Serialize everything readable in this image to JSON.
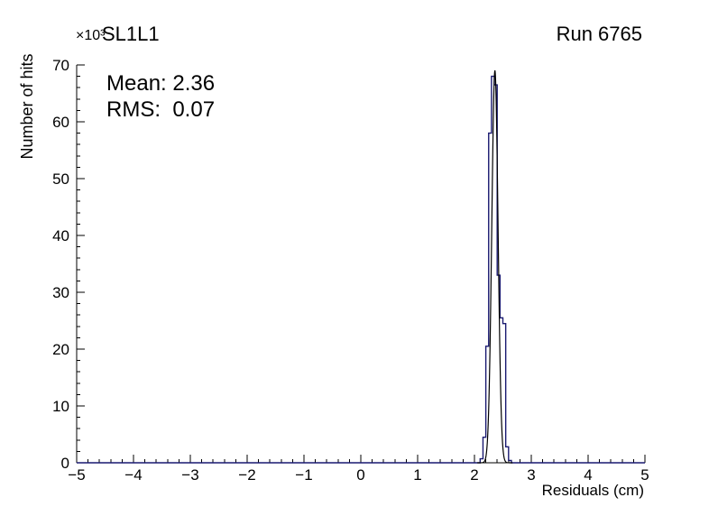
{
  "chart_data": {
    "type": "histogram",
    "title": "SL1L1",
    "top_right_label": "Run 6765",
    "xlabel": "Residuals (cm)",
    "ylabel": "Number of hits",
    "y_multiplier": "×10³",
    "xlim": [
      -5,
      5
    ],
    "ylim": [
      0,
      70000
    ],
    "x_tick_values": [
      -5,
      -4,
      -3,
      -2,
      -1,
      0,
      1,
      2,
      3,
      4,
      5
    ],
    "x_tick_labels": [
      "−5",
      "−4",
      "−3",
      "−2",
      "−1",
      "0",
      "1",
      "2",
      "3",
      "4",
      "5"
    ],
    "x_minor_step": 0.2,
    "y_tick_values": [
      0,
      10000,
      20000,
      30000,
      40000,
      50000,
      60000,
      70000
    ],
    "y_tick_labels": [
      "0",
      "10",
      "20",
      "30",
      "40",
      "50",
      "60",
      "70"
    ],
    "y_minor_step": 2000,
    "grid": false,
    "legend": "none",
    "stats": {
      "mean": 2.36,
      "rms": 0.07,
      "mean_text": "Mean: 2.36",
      "rms_text": "RMS:  0.07"
    },
    "colors": {
      "histogram": "#191970",
      "fit": "#000000",
      "axis": "#000000",
      "text": "#000000",
      "background": "#ffffff"
    },
    "bins": {
      "width": 0.05,
      "entries": [
        {
          "x": 2.1,
          "count": 700
        },
        {
          "x": 2.15,
          "count": 4500
        },
        {
          "x": 2.2,
          "count": 20500
        },
        {
          "x": 2.25,
          "count": 58000
        },
        {
          "x": 2.3,
          "count": 68000
        },
        {
          "x": 2.35,
          "count": 66500
        },
        {
          "x": 2.4,
          "count": 33000
        },
        {
          "x": 2.45,
          "count": 25500
        },
        {
          "x": 2.5,
          "count": 24500
        },
        {
          "x": 2.55,
          "count": 2800
        },
        {
          "x": 2.6,
          "count": 400
        }
      ]
    },
    "fit": {
      "shape": "gaussian",
      "amplitude": 69000,
      "mean": 2.36,
      "sigma": 0.055,
      "range": [
        2.05,
        2.67
      ]
    }
  }
}
